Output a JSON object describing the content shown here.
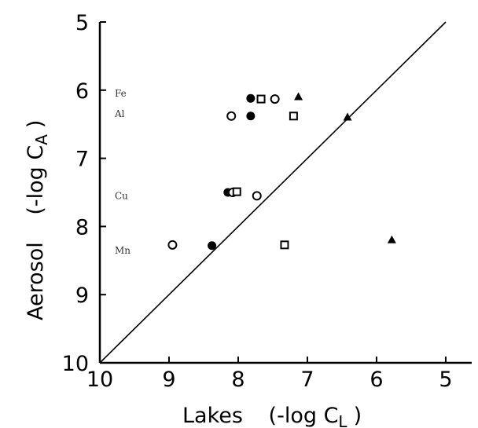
{
  "chart_data": {
    "type": "scatter",
    "xlabel": "Lakes",
    "xlabel_expr": "(-log C",
    "xlabel_sub": "L",
    "xlabel_close": ")",
    "ylabel": "Aerosol",
    "ylabel_expr": "(-log C",
    "ylabel_sub": "A",
    "ylabel_close": ")",
    "xlim": [
      10,
      5
    ],
    "ylim": [
      10,
      5
    ],
    "x_reversed": true,
    "y_reversed": true,
    "x_ticks": [
      "10",
      "9",
      "8",
      "7",
      "6",
      "5"
    ],
    "y_ticks": [
      "5",
      "6",
      "7",
      "8",
      "9",
      "10"
    ],
    "element_labels": [
      {
        "text": "Fe",
        "y": 6.05
      },
      {
        "text": "Al",
        "y": 6.35
      },
      {
        "text": "Cu",
        "y": 7.55
      },
      {
        "text": "Mn",
        "y": 8.35
      }
    ],
    "reference_line": {
      "from": [
        10,
        10
      ],
      "to": [
        5,
        5
      ]
    },
    "series": [
      {
        "marker": "filled-circle",
        "points": [
          {
            "x": 7.82,
            "y": 6.12
          },
          {
            "x": 7.82,
            "y": 6.38
          },
          {
            "x": 8.15,
            "y": 7.5
          },
          {
            "x": 8.38,
            "y": 8.28
          }
        ]
      },
      {
        "marker": "open-circle",
        "points": [
          {
            "x": 7.47,
            "y": 6.13
          },
          {
            "x": 8.1,
            "y": 6.38
          },
          {
            "x": 8.08,
            "y": 7.5
          },
          {
            "x": 7.73,
            "y": 7.55
          },
          {
            "x": 8.95,
            "y": 8.27
          }
        ]
      },
      {
        "marker": "open-square",
        "points": [
          {
            "x": 7.67,
            "y": 6.13
          },
          {
            "x": 7.2,
            "y": 6.38
          },
          {
            "x": 8.02,
            "y": 7.49
          },
          {
            "x": 7.33,
            "y": 8.27
          }
        ]
      },
      {
        "marker": "filled-triangle",
        "points": [
          {
            "x": 7.13,
            "y": 6.1
          },
          {
            "x": 6.42,
            "y": 6.4
          },
          {
            "x": 5.78,
            "y": 8.2
          }
        ]
      }
    ]
  }
}
